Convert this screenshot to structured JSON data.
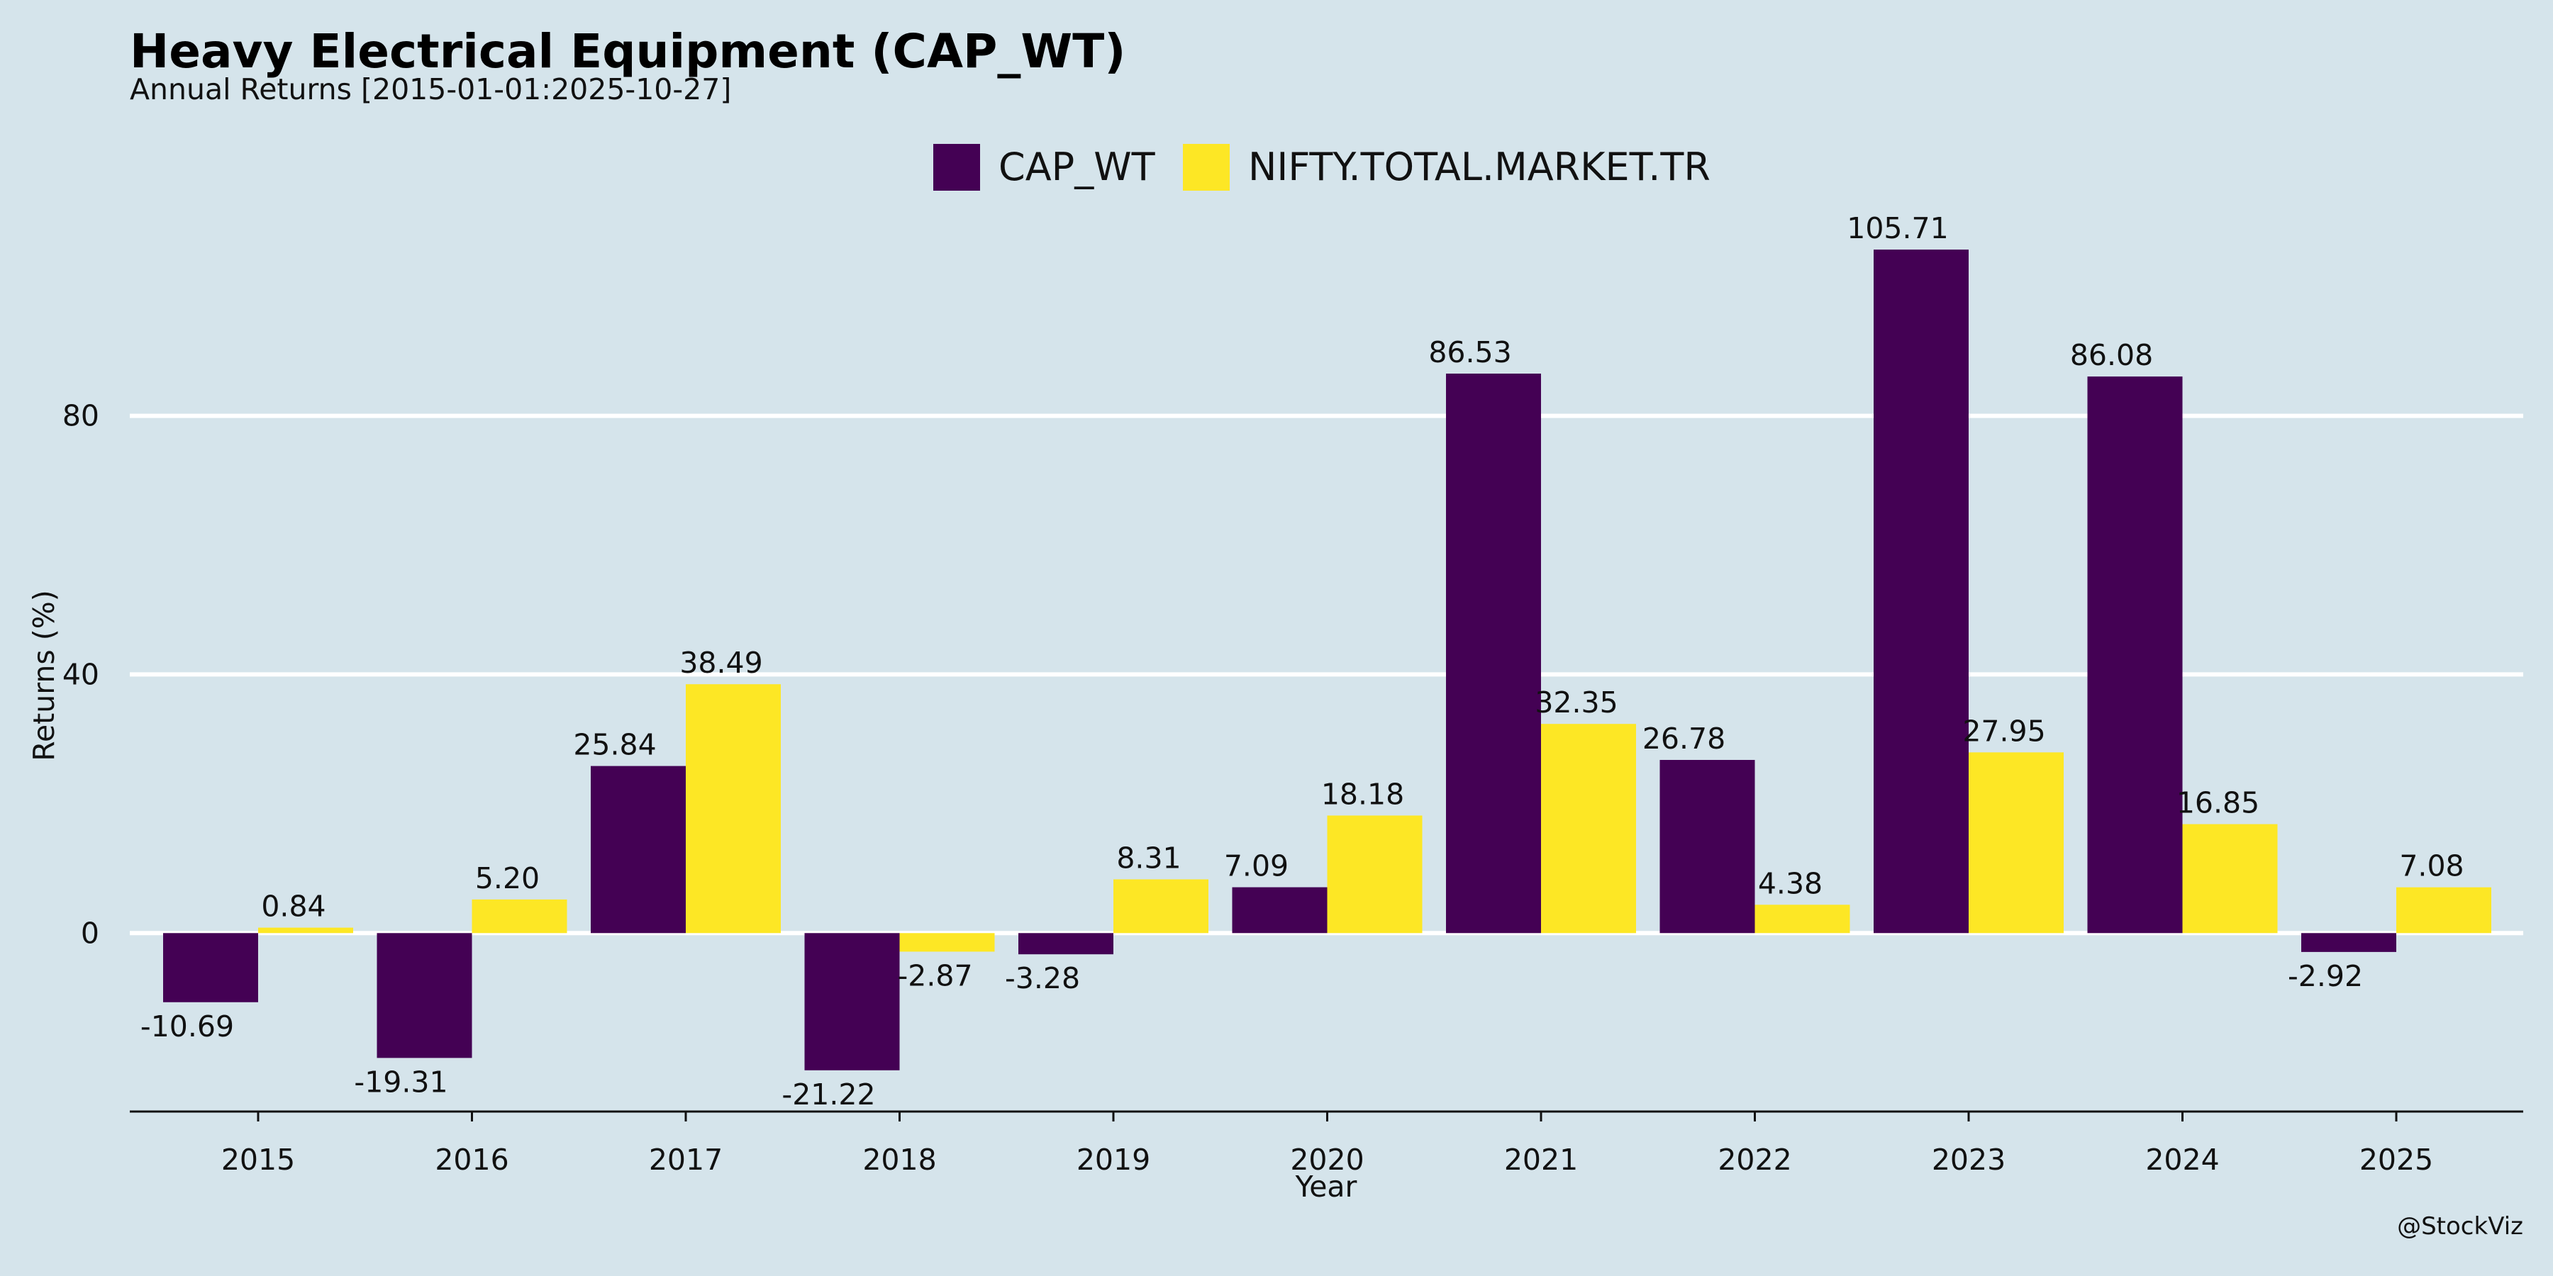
{
  "title": "Heavy Electrical Equipment (CAP_WT)",
  "subtitle": "Annual Returns [2015-01-01:2025-10-27]",
  "watermark": "@StockViz",
  "chart_data": {
    "type": "bar",
    "xlabel": "Year",
    "ylabel": "Returns (%)",
    "categories": [
      "2015",
      "2016",
      "2017",
      "2018",
      "2019",
      "2020",
      "2021",
      "2022",
      "2023",
      "2024",
      "2025"
    ],
    "series": [
      {
        "name": "CAP_WT",
        "color": "#440154",
        "values": [
          -10.69,
          -19.31,
          25.84,
          -21.22,
          -3.28,
          7.09,
          86.53,
          26.78,
          105.71,
          86.08,
          -2.92
        ],
        "labels": [
          "-10.69",
          "-19.31",
          "25.84",
          "-21.22",
          "-3.28",
          "7.09",
          "86.53",
          "26.78",
          "105.71",
          "86.08",
          "-2.92"
        ]
      },
      {
        "name": "NIFTY.TOTAL.MARKET.TR",
        "color": "#fde725",
        "values": [
          0.84,
          5.2,
          38.49,
          -2.87,
          8.31,
          18.18,
          32.35,
          4.38,
          27.95,
          16.85,
          7.08
        ],
        "labels": [
          "0.84",
          "5.20",
          "38.49",
          "-2.87",
          "8.31",
          "18.18",
          "32.35",
          "4.38",
          "27.95",
          "16.85",
          "7.08"
        ]
      }
    ],
    "yticks": [
      0,
      40,
      80
    ],
    "ytick_labels": [
      "0",
      "40",
      "80"
    ],
    "ylim": [
      -27.6,
      118
    ],
    "grid": "horizontal",
    "legend_position": "top-center"
  }
}
